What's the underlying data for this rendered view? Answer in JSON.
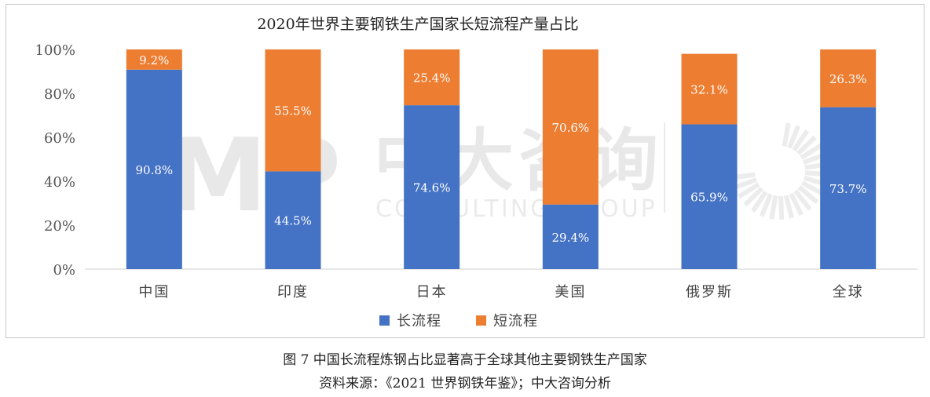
{
  "chart_data": {
    "type": "bar",
    "stacked": true,
    "title": "2020年世界主要钢铁生产国家长短流程产量占比",
    "categories": [
      "中国",
      "印度",
      "日本",
      "美国",
      "俄罗斯",
      "全球"
    ],
    "series": [
      {
        "name": "长流程",
        "values": [
          90.8,
          44.5,
          74.6,
          29.4,
          65.9,
          73.7
        ],
        "labels": [
          "90.8%",
          "44.5%",
          "74.6%",
          "29.4%",
          "65.9%",
          "73.7%"
        ],
        "color": "#4472c4"
      },
      {
        "name": "短流程",
        "values": [
          9.2,
          55.5,
          25.4,
          70.6,
          32.1,
          26.3
        ],
        "labels": [
          "9.2%",
          "55.5%",
          "25.4%",
          "70.6%",
          "32.1%",
          "26.3%"
        ],
        "color": "#ed7d31"
      }
    ],
    "ylim": [
      0,
      100
    ],
    "yticks": [
      "0%",
      "20%",
      "40%",
      "60%",
      "80%",
      "100%"
    ],
    "legend": "bottom",
    "grid": false,
    "watermark": {
      "brand": "中大咨询",
      "sub": "CONSULTING GROUP",
      "logo": "MP"
    }
  },
  "caption": "图 7 中国长流程炼钢占比显著高于全球其他主要钢铁生产国家",
  "source": "资料来源：《2021 世界钢铁年鉴》；中大咨询分析"
}
